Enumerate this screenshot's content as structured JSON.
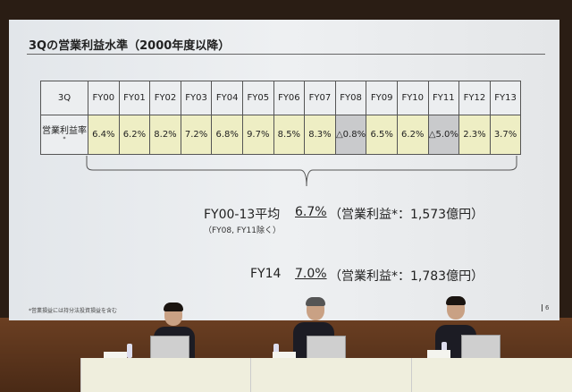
{
  "slide": {
    "title": "3Qの営業利益水準（2000年度以降）",
    "table": {
      "row_header": "3Q",
      "row_label": "営業利益率",
      "row_label_mark": "*",
      "years": [
        "FY00",
        "FY01",
        "FY02",
        "FY03",
        "FY04",
        "FY05",
        "FY06",
        "FY07",
        "FY08",
        "FY09",
        "FY10",
        "FY11",
        "FY12",
        "FY13"
      ],
      "values": [
        "6.4%",
        "6.2%",
        "8.2%",
        "7.2%",
        "6.8%",
        "9.7%",
        "8.5%",
        "8.3%",
        "△0.8%",
        "6.5%",
        "6.2%",
        "△5.0%",
        "2.3%",
        "3.7%"
      ],
      "highlight_color": "#eeeec4",
      "negative_color": "#c9cacc"
    },
    "average": {
      "label": "FY00-13平均",
      "value": "6.7%",
      "detail": "（営業利益*：1,573億円）",
      "note": "（FY08, FY11除く）"
    },
    "fy14": {
      "label": "FY14",
      "value": "7.0%",
      "detail": "（営業利益*：1,783億円）"
    },
    "footnote": "*営業損益には持分法投資損益を含む",
    "page_number": "6"
  }
}
